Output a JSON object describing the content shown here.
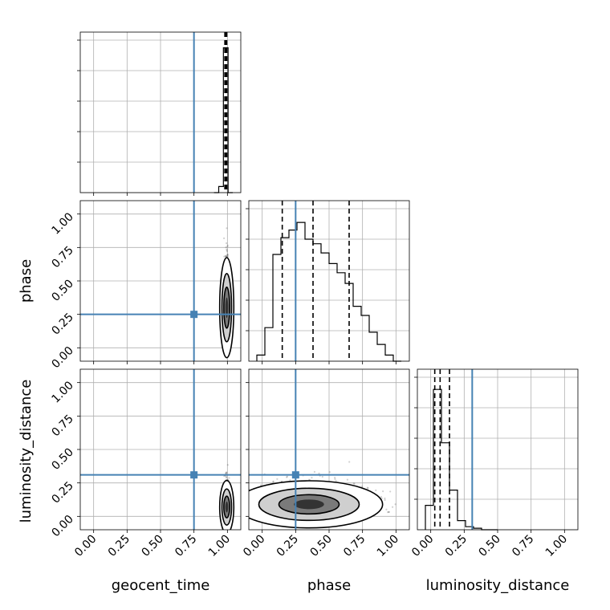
{
  "chart_data": {
    "type": "corner",
    "parameters": [
      "geocent_time",
      "phase",
      "luminosity_distance"
    ],
    "axis_range": [
      -0.1,
      1.1
    ],
    "tick_values": [
      0,
      0.25,
      0.5,
      0.75,
      1.0
    ],
    "tick_labels": [
      "0.00",
      "0.25",
      "0.50",
      "0.75",
      "1.00"
    ],
    "grid": true,
    "truths": {
      "geocent_time": 0.75,
      "phase": 0.25,
      "luminosity_distance": 0.31,
      "color": "#4682b4"
    },
    "histograms": {
      "geocent_time": {
        "bin_edges": [
          0.9,
          0.935,
          0.97,
          1.005,
          1.04
        ],
        "counts": [
          0,
          0.04,
          0.95,
          0
        ],
        "quantiles": [
          0.981,
          0.988,
          0.995
        ]
      },
      "phase": {
        "bin_edges": [
          -0.04,
          0.02,
          0.08,
          0.14,
          0.2,
          0.26,
          0.32,
          0.38,
          0.44,
          0.5,
          0.56,
          0.62,
          0.68,
          0.74,
          0.8,
          0.86,
          0.92,
          0.98,
          1.04
        ],
        "counts": [
          0.04,
          0.22,
          0.7,
          0.81,
          0.86,
          0.91,
          0.8,
          0.77,
          0.71,
          0.64,
          0.58,
          0.51,
          0.36,
          0.3,
          0.19,
          0.11,
          0.04,
          0
        ],
        "quantiles": [
          0.15,
          0.38,
          0.65
        ]
      },
      "luminosity_distance": {
        "bin_edges": [
          -0.04,
          0.02,
          0.08,
          0.14,
          0.2,
          0.26,
          0.32,
          0.38,
          0.44,
          0.5
        ],
        "counts": [
          0.16,
          0.92,
          0.57,
          0.26,
          0.06,
          0.02,
          0.01,
          0,
          0
        ],
        "quantiles": [
          0.03,
          0.07,
          0.14
        ]
      }
    },
    "joint_2d": [
      {
        "x": "geocent_time",
        "y": "phase",
        "center": [
          0.995,
          0.3
        ],
        "spread": [
          0.009,
          0.17
        ],
        "points_range_y": [
          0.0,
          1.0
        ]
      },
      {
        "x": "geocent_time",
        "y": "luminosity_distance",
        "center": [
          0.995,
          0.07
        ],
        "spread": [
          0.009,
          0.09
        ],
        "points_range_y": [
          0.0,
          0.56
        ]
      },
      {
        "x": "phase",
        "y": "luminosity_distance",
        "center": [
          0.35,
          0.09
        ],
        "spread": [
          0.25,
          0.08
        ],
        "points_range_y": [
          0.0,
          0.5
        ]
      }
    ]
  }
}
